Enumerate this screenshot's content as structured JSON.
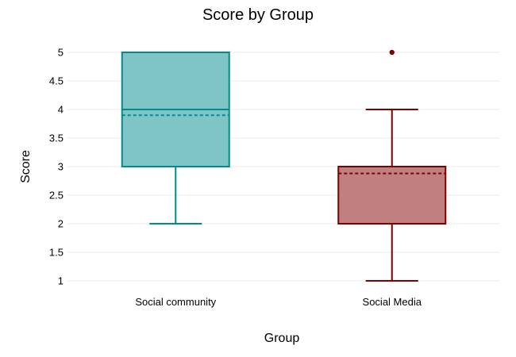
{
  "chart_data": {
    "type": "box",
    "title": "Score by Group",
    "xlabel": "Group",
    "ylabel": "Score",
    "ylim": [
      0.85,
      5.2
    ],
    "yticks": [
      1,
      1.5,
      2,
      2.5,
      3,
      3.5,
      4,
      4.5,
      5
    ],
    "ytick_labels": [
      "1",
      "1.5",
      "2",
      "2.5",
      "3",
      "3.5",
      "4",
      "4.5",
      "5"
    ],
    "grid": "horizontal",
    "legend": "none",
    "categories": [
      "Social community",
      "Social Media"
    ],
    "series": [
      {
        "category": "Social community",
        "min": 2,
        "q1": 3,
        "median": 4,
        "q3": 5,
        "max": 5,
        "mean": 3.9,
        "outliers": [],
        "color": "#008b8b",
        "fill": "#7fc5c5"
      },
      {
        "category": "Social Media",
        "min": 1,
        "q1": 2,
        "median": 3,
        "q3": 3,
        "max": 4,
        "mean": 2.88,
        "outliers": [
          5
        ],
        "color": "#7f0000",
        "fill": "#c08080"
      }
    ]
  }
}
